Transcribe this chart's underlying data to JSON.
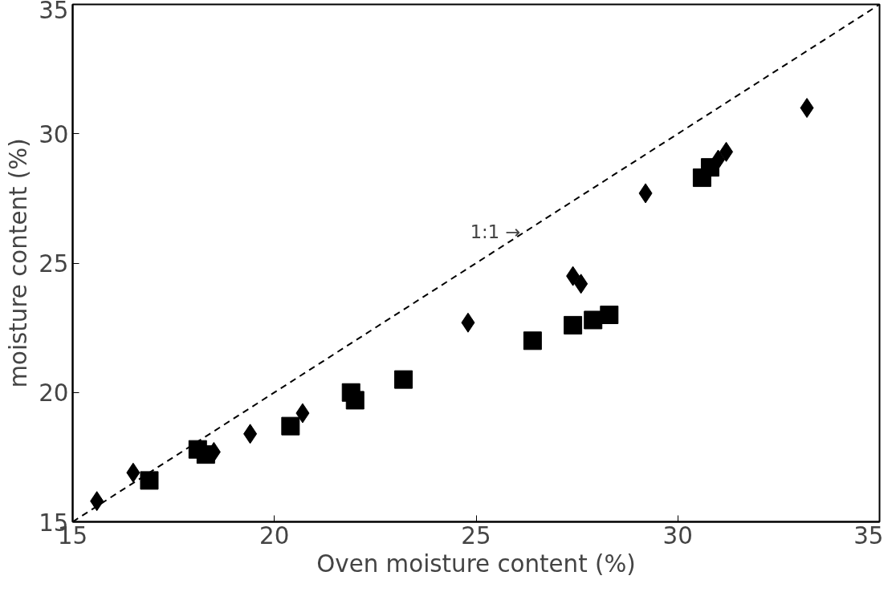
{
  "chart_data": {
    "type": "scatter",
    "xlabel": "Oven moisture content (%)",
    "ylabel": "moisture content (%)",
    "xlim": [
      15,
      35
    ],
    "ylim": [
      15,
      35
    ],
    "xticks": [
      15,
      20,
      25,
      30,
      35
    ],
    "yticks": [
      15,
      20,
      25,
      30,
      35
    ],
    "grid": false,
    "series": [
      {
        "marker": "square",
        "color": "#000000",
        "x": [
          16.9,
          18.1,
          18.3,
          20.4,
          21.9,
          22.0,
          23.2,
          26.4,
          27.4,
          27.9,
          28.3,
          30.6,
          30.8
        ],
        "values": [
          16.6,
          17.8,
          17.6,
          18.7,
          20.0,
          19.7,
          20.5,
          22.0,
          22.6,
          22.8,
          23.0,
          28.3,
          28.7
        ]
      },
      {
        "marker": "diamond",
        "color": "#000000",
        "x": [
          15.6,
          16.5,
          18.5,
          19.4,
          20.7,
          24.8,
          27.4,
          27.6,
          29.2,
          31.0,
          31.2,
          33.2
        ],
        "values": [
          15.8,
          16.9,
          17.7,
          18.4,
          19.2,
          22.7,
          24.5,
          24.2,
          27.7,
          29.0,
          29.3,
          31.0
        ]
      },
      {
        "type": "line",
        "line_style": "dashed",
        "marker": "none",
        "color": "#000000",
        "x": [
          15,
          35
        ],
        "values": [
          15,
          35
        ]
      }
    ],
    "annotations": [
      {
        "text": "1:1 →",
        "x": 26.1,
        "y": 26.2
      }
    ]
  }
}
